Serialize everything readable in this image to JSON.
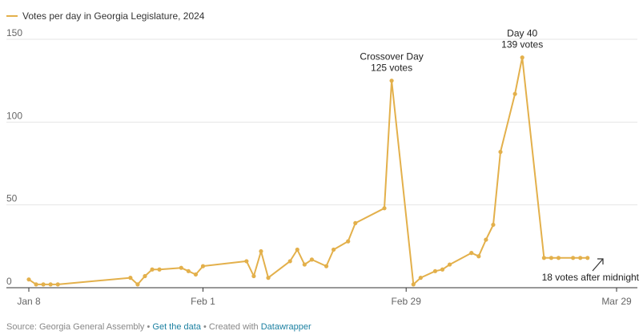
{
  "chart_data": {
    "type": "line",
    "title": "",
    "series": [
      {
        "name": "Votes per day in Georgia Legislature, 2024",
        "color": "#e3b04b",
        "x": [
          0,
          1,
          2,
          3,
          4,
          14,
          15,
          16,
          17,
          18,
          21,
          22,
          23,
          24,
          30,
          31,
          32,
          33,
          36,
          37,
          38,
          39,
          41,
          42,
          44,
          45,
          49,
          50,
          53,
          54,
          56,
          57,
          58,
          61,
          62,
          63,
          64,
          65,
          67,
          68,
          71,
          72,
          73,
          75,
          76,
          77
        ],
        "values": [
          5,
          2,
          2,
          2,
          2,
          6,
          2,
          7,
          11,
          11,
          12,
          10,
          8,
          13,
          16,
          7,
          22,
          6,
          16,
          23,
          14,
          17,
          13,
          23,
          28,
          39,
          48,
          125,
          2,
          6,
          10,
          11,
          14,
          21,
          19,
          29,
          38,
          82,
          117,
          139,
          18,
          18,
          18,
          18,
          18,
          18
        ]
      }
    ],
    "x_ticks": [
      {
        "x": 0,
        "label": "Jan 8"
      },
      {
        "x": 24,
        "label": "Feb 1"
      },
      {
        "x": 52,
        "label": "Feb 29"
      },
      {
        "x": 81,
        "label": "Mar 29"
      }
    ],
    "xlim": [
      0,
      81
    ],
    "ylim": [
      0,
      150
    ],
    "y_ticks": [
      0,
      50,
      100,
      150
    ],
    "xlabel": "",
    "ylabel": "",
    "grid": true,
    "annotations": [
      {
        "lines": [
          "Crossover Day",
          "125 votes"
        ],
        "x": 50,
        "y": 125
      },
      {
        "lines": [
          "Day 40",
          "139 votes"
        ],
        "x": 68,
        "y": 139
      },
      {
        "lines": [
          "18 votes after midnight"
        ],
        "x": 77,
        "y": 18
      }
    ]
  },
  "footer": {
    "source_text": "Source: Georgia General Assembly • ",
    "get_data_label": "Get the data",
    "created_text": " • Created with ",
    "datawrapper_label": "Datawrapper"
  }
}
